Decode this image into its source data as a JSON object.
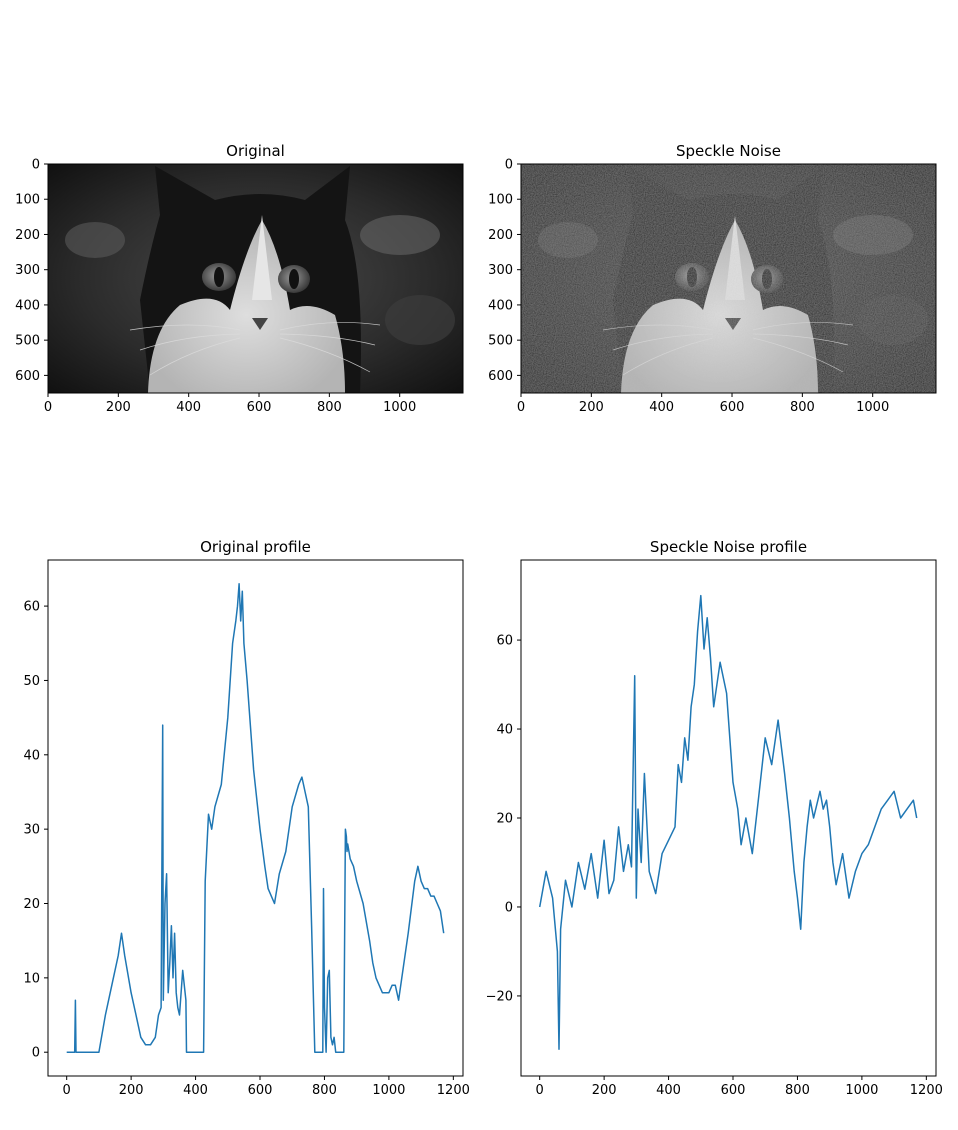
{
  "colors": {
    "line": "#1f77b4",
    "axis": "#000000",
    "background": "#ffffff"
  },
  "panels": {
    "original": {
      "title": "Original",
      "image": "cat-image"
    },
    "speckle": {
      "title": "Speckle Noise",
      "image": "cat-image-speckle"
    }
  },
  "chart_data": [
    {
      "type": "image",
      "title": "Original",
      "xlim": [
        0,
        1180
      ],
      "ylim": [
        650,
        0
      ],
      "xticks": [
        0,
        200,
        400,
        600,
        800,
        1000
      ],
      "yticks": [
        0,
        100,
        200,
        300,
        400,
        500,
        600
      ]
    },
    {
      "type": "image",
      "title": "Speckle Noise",
      "xlim": [
        0,
        1180
      ],
      "ylim": [
        650,
        0
      ],
      "xticks": [
        0,
        200,
        400,
        600,
        800,
        1000
      ],
      "yticks": [
        0,
        100,
        200,
        300,
        400,
        500,
        600
      ]
    },
    {
      "type": "line",
      "title": "Original profile",
      "xlim": [
        -58,
        1230
      ],
      "ylim": [
        -3.2,
        66.2
      ],
      "xticks": [
        0,
        200,
        400,
        600,
        800,
        1000,
        1200
      ],
      "yticks": [
        0,
        10,
        20,
        30,
        40,
        50,
        60
      ],
      "series": [
        {
          "x": [
            0,
            25,
            27,
            29,
            30,
            60,
            100,
            120,
            140,
            160,
            170,
            180,
            200,
            215,
            230,
            245,
            260,
            275,
            285,
            293,
            298,
            300,
            305,
            310,
            315,
            320,
            325,
            330,
            335,
            340,
            345,
            350,
            360,
            370,
            372,
            374,
            376,
            380,
            400,
            420,
            425,
            430,
            440,
            450,
            460,
            480,
            500,
            515,
            525,
            530,
            535,
            540,
            545,
            550,
            560,
            580,
            600,
            615,
            625,
            635,
            645,
            660,
            680,
            700,
            720,
            730,
            735,
            740,
            750,
            760,
            770,
            780,
            790,
            795,
            797,
            800,
            805,
            810,
            815,
            820,
            825,
            830,
            835,
            840,
            850,
            860,
            865,
            868,
            870,
            872,
            880,
            890,
            900,
            920,
            940,
            950,
            960,
            980,
            1000,
            1010,
            1020,
            1030,
            1040,
            1060,
            1080,
            1090,
            1100,
            1110,
            1120,
            1130,
            1140,
            1150,
            1160,
            1170
          ],
          "y": [
            0,
            0,
            7,
            0,
            0,
            0,
            0,
            5,
            9,
            13,
            16,
            13,
            8,
            5,
            2,
            1,
            1,
            2,
            5,
            6,
            44,
            7,
            20,
            24,
            8,
            12,
            17,
            10,
            16,
            8,
            6,
            5,
            11,
            7,
            0,
            0,
            0,
            0,
            0,
            0,
            0,
            23,
            32,
            30,
            33,
            36,
            45,
            55,
            58,
            60,
            63,
            58,
            62,
            55,
            50,
            38,
            30,
            25,
            22,
            21,
            20,
            24,
            27,
            33,
            36,
            37,
            36,
            35,
            33,
            17,
            0,
            0,
            0,
            0,
            22,
            6,
            0,
            10,
            11,
            2,
            1,
            2,
            0,
            0,
            0,
            0,
            30,
            29,
            27,
            28,
            26,
            25,
            23,
            20,
            15,
            12,
            10,
            8,
            8,
            9,
            9,
            7,
            10,
            16,
            23,
            25,
            23,
            22,
            22,
            21,
            21,
            20,
            19,
            16
          ]
        }
      ]
    },
    {
      "type": "line",
      "title": "Speckle Noise profile",
      "xlim": [
        -58,
        1230
      ],
      "ylim": [
        -38,
        78
      ],
      "xticks": [
        0,
        200,
        400,
        600,
        800,
        1000,
        1200
      ],
      "yticks": [
        -20,
        0,
        20,
        40,
        60
      ],
      "series": [
        {
          "x": [
            0,
            20,
            40,
            55,
            60,
            65,
            80,
            100,
            120,
            140,
            160,
            180,
            200,
            215,
            230,
            245,
            260,
            275,
            285,
            295,
            300,
            305,
            315,
            325,
            340,
            360,
            380,
            400,
            420,
            430,
            440,
            450,
            460,
            470,
            480,
            490,
            500,
            510,
            520,
            530,
            540,
            560,
            580,
            600,
            615,
            625,
            640,
            660,
            680,
            700,
            720,
            740,
            760,
            775,
            790,
            800,
            810,
            820,
            830,
            840,
            850,
            870,
            880,
            890,
            900,
            910,
            920,
            940,
            960,
            980,
            1000,
            1020,
            1040,
            1060,
            1080,
            1100,
            1120,
            1140,
            1160,
            1170
          ],
          "y": [
            0,
            8,
            2,
            -10,
            -32,
            -5,
            6,
            0,
            10,
            4,
            12,
            2,
            15,
            3,
            6,
            18,
            8,
            14,
            9,
            52,
            2,
            22,
            10,
            30,
            8,
            3,
            12,
            15,
            18,
            32,
            28,
            38,
            33,
            45,
            50,
            62,
            70,
            58,
            65,
            56,
            45,
            55,
            48,
            28,
            22,
            14,
            20,
            12,
            25,
            38,
            32,
            42,
            30,
            20,
            8,
            2,
            -5,
            10,
            18,
            24,
            20,
            26,
            22,
            24,
            18,
            10,
            5,
            12,
            2,
            8,
            12,
            14,
            18,
            22,
            24,
            26,
            20,
            22,
            24,
            20
          ]
        }
      ]
    }
  ]
}
